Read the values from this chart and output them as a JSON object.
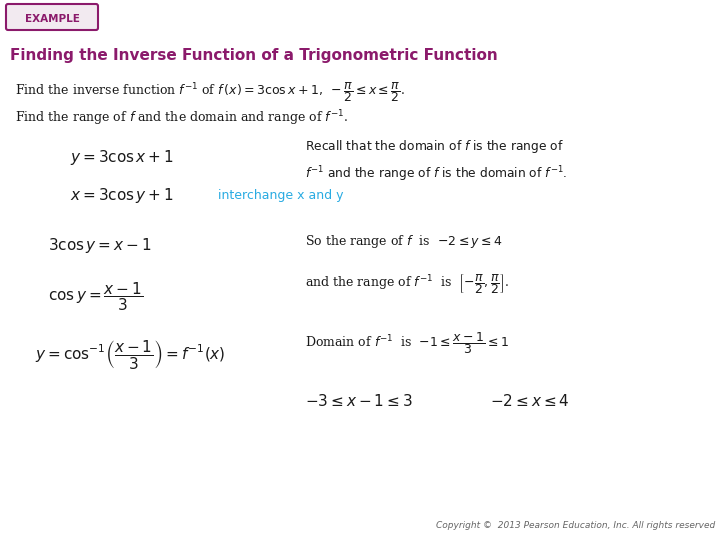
{
  "bg_color": "#ffffff",
  "purple": "#8B1A6B",
  "cyan": "#29ABE2",
  "black": "#1a1a1a",
  "gray_text": "#666666",
  "example_box_bg": "#F2EAF0",
  "copyright": "Copyright ©  2013 Pearson Education, Inc. All rights reserved",
  "title": "Finding the Inverse Function of a Trigonometric Function"
}
